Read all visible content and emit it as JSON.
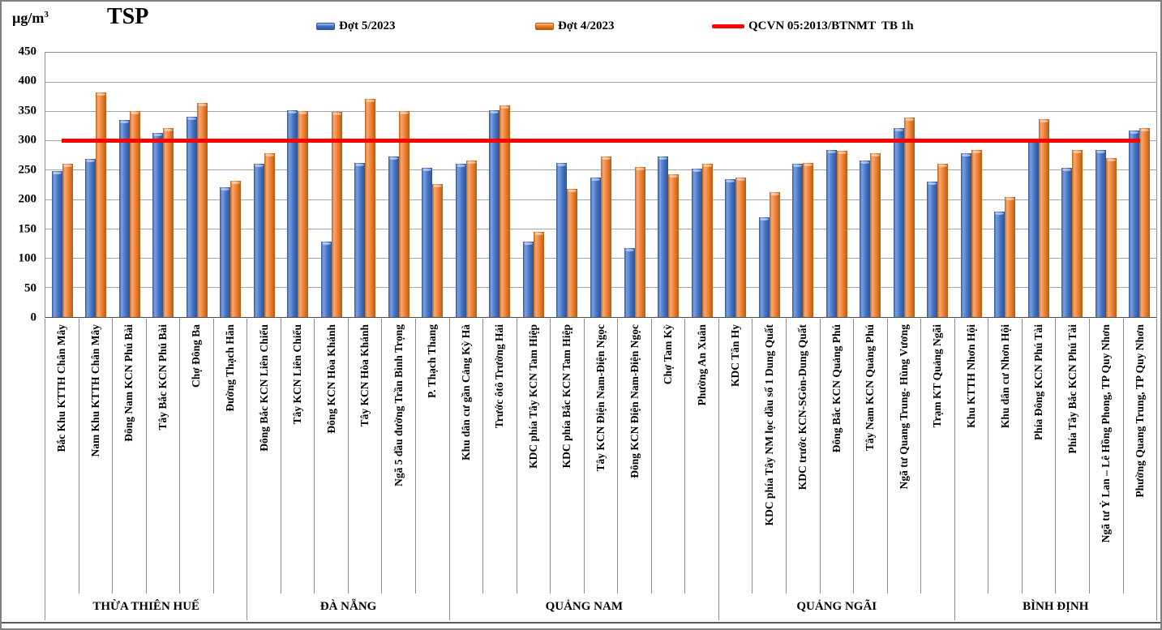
{
  "header": {
    "unit_base": "µg/m",
    "unit_sup": "3",
    "title": "TSP"
  },
  "legend": [
    {
      "label": "Đợt 5/2023",
      "type": "bar",
      "color": "#4472C4"
    },
    {
      "label": "Đợt 4/2023",
      "type": "bar",
      "color": "#ED7D31"
    },
    {
      "label": "QCVN 05:2013/BTNMT  TB 1h",
      "type": "line",
      "color": "#FF0000"
    }
  ],
  "chart_data": {
    "type": "bar",
    "title": "TSP",
    "ylabel": "µg/m³",
    "ylim": [
      0,
      450
    ],
    "yticks": [
      0,
      50,
      100,
      150,
      200,
      250,
      300,
      350,
      400,
      450
    ],
    "grid": true,
    "legend_position": "top",
    "reference_line": {
      "label": "QCVN 05:2013/BTNMT  TB 1h",
      "value": 300,
      "color": "#FF0000"
    },
    "categories": [
      "Bắc Khu KTTH Chân Mây",
      "Nam Khu KTTH Chân Mây",
      "Đông Nam KCN Phú Bài",
      "Tây Bắc KCN Phú Bài",
      "Chợ Đông Ba",
      "Đường Thạch Hãn",
      "Đông Bắc KCN Liên  Chiểu",
      "Tây KCN Liên Chiểu",
      "Đông KCN Hòa Khánh",
      "Tây KCN Hòa Khánh",
      "Ngã 5 đầu đường Trần Bình Trọng",
      "P. Thạch Thang",
      "Khu dân cư gần Cảng Kỳ Hà",
      "Trước ôtô Trường Hải",
      "KDC phía Tây KCN Tam Hiệp",
      "KDC phía Bắc KCN Tam Hiệp",
      "Tây KCN Điện Nam-Điện Ngọc",
      "Đông KCN Điện Nam-Điện Ngọc",
      "Chợ Tam Kỳ",
      "Phường An Xuân",
      "KDC Tân Hy",
      "KDC phía Tây NM lọc dầu số 1 Dung Quất",
      "KDC trước KCN-SGòn-Dung Quất",
      "Đông Bắc KCN Quảng Phú",
      "Tây Nam KCN Quảng Phú",
      "Ngã tư Quang Trung- Hùng Vương",
      "Trạm KT Quảng Ngãi",
      "Khu KTTH Nhơn Hội",
      "Khu dân cư Nhơn Hội",
      "Phía Đông KCN Phú Tài",
      "Phía Tây Bắc KCN Phú Tài",
      "Ngã tư Ỷ Lan – Lê Hồng Phong, TP Quy Nhơn",
      "Phường Quang Trung, TP Quy Nhơn"
    ],
    "series": [
      {
        "name": "Đợt 5/2023",
        "color": "#4472C4",
        "values": [
          249,
          269,
          335,
          313,
          341,
          221,
          261,
          352,
          128,
          263,
          273,
          254,
          261,
          352,
          128,
          263,
          237,
          118,
          273,
          253,
          235,
          170,
          261,
          285,
          266,
          321,
          230,
          279,
          179,
          303,
          254,
          284,
          318
        ]
      },
      {
        "name": "Đợt 4/2023",
        "color": "#ED7D31",
        "values": [
          261,
          383,
          351,
          321,
          365,
          232,
          279,
          351,
          349,
          371,
          351,
          226,
          266,
          360,
          145,
          218,
          274,
          255,
          243,
          261,
          238,
          213,
          263,
          283,
          279,
          340,
          261,
          285,
          204,
          337,
          285,
          270,
          322
        ]
      }
    ],
    "groups": [
      {
        "label": "THỪA THIÊN HUẾ",
        "count": 6
      },
      {
        "label": "ĐÀ NẴNG",
        "count": 6
      },
      {
        "label": "QUẢNG NAM",
        "count": 8
      },
      {
        "label": "QUẢNG NGÃI",
        "count": 7
      },
      {
        "label": "BÌNH ĐỊNH",
        "count": 6
      }
    ]
  }
}
